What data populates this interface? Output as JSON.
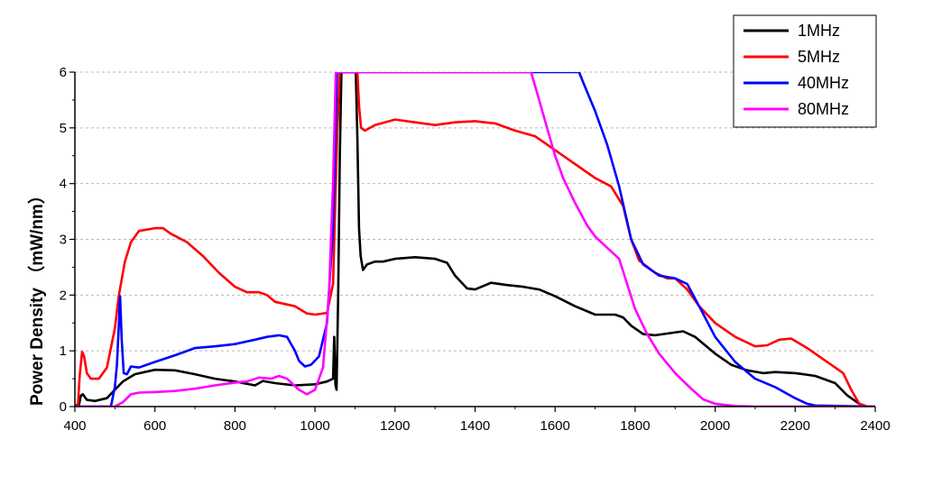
{
  "chart_data": {
    "type": "line",
    "title": "",
    "xlabel": "",
    "ylabel": "Power Density （mW/nm）",
    "xlim": [
      400,
      2400
    ],
    "ylim": [
      0,
      6
    ],
    "x_ticks": [
      "400",
      "600",
      "800",
      "1000",
      "1200",
      "1400",
      "1600",
      "1800",
      "2000",
      "2200",
      "2400"
    ],
    "y_ticks": [
      "0",
      "1",
      "2",
      "3",
      "4",
      "5",
      "6"
    ],
    "grid": "horizontal dashed",
    "legend_position": "top-right",
    "series": [
      {
        "name": "1MHz",
        "color": "#000000",
        "points": [
          [
            400,
            0.0
          ],
          [
            410,
            0.02
          ],
          [
            415,
            0.2
          ],
          [
            420,
            0.22
          ],
          [
            430,
            0.12
          ],
          [
            450,
            0.1
          ],
          [
            480,
            0.15
          ],
          [
            500,
            0.3
          ],
          [
            520,
            0.45
          ],
          [
            550,
            0.58
          ],
          [
            600,
            0.66
          ],
          [
            650,
            0.65
          ],
          [
            700,
            0.58
          ],
          [
            750,
            0.5
          ],
          [
            800,
            0.45
          ],
          [
            850,
            0.38
          ],
          [
            870,
            0.46
          ],
          [
            900,
            0.42
          ],
          [
            950,
            0.38
          ],
          [
            1000,
            0.4
          ],
          [
            1030,
            0.45
          ],
          [
            1045,
            0.5
          ],
          [
            1048,
            1.25
          ],
          [
            1051,
            0.4
          ],
          [
            1054,
            0.3
          ],
          [
            1058,
            2.0
          ],
          [
            1062,
            4.5
          ],
          [
            1066,
            6.0
          ],
          [
            1102,
            6.0
          ],
          [
            1106,
            4.8
          ],
          [
            1110,
            3.2
          ],
          [
            1114,
            2.7
          ],
          [
            1120,
            2.45
          ],
          [
            1130,
            2.55
          ],
          [
            1150,
            2.6
          ],
          [
            1170,
            2.6
          ],
          [
            1200,
            2.65
          ],
          [
            1250,
            2.68
          ],
          [
            1300,
            2.65
          ],
          [
            1330,
            2.58
          ],
          [
            1350,
            2.35
          ],
          [
            1380,
            2.12
          ],
          [
            1400,
            2.1
          ],
          [
            1440,
            2.22
          ],
          [
            1480,
            2.18
          ],
          [
            1520,
            2.15
          ],
          [
            1560,
            2.1
          ],
          [
            1600,
            1.98
          ],
          [
            1650,
            1.8
          ],
          [
            1700,
            1.65
          ],
          [
            1750,
            1.65
          ],
          [
            1770,
            1.6
          ],
          [
            1790,
            1.45
          ],
          [
            1820,
            1.3
          ],
          [
            1850,
            1.28
          ],
          [
            1890,
            1.32
          ],
          [
            1920,
            1.35
          ],
          [
            1950,
            1.25
          ],
          [
            2000,
            0.95
          ],
          [
            2040,
            0.75
          ],
          [
            2080,
            0.65
          ],
          [
            2120,
            0.6
          ],
          [
            2150,
            0.62
          ],
          [
            2200,
            0.6
          ],
          [
            2250,
            0.55
          ],
          [
            2300,
            0.42
          ],
          [
            2330,
            0.2
          ],
          [
            2360,
            0.05
          ],
          [
            2380,
            0.0
          ],
          [
            2400,
            0.0
          ]
        ]
      },
      {
        "name": "5MHz",
        "color": "#ff0000",
        "points": [
          [
            400,
            0.0
          ],
          [
            408,
            0.05
          ],
          [
            412,
            0.55
          ],
          [
            418,
            0.98
          ],
          [
            423,
            0.9
          ],
          [
            430,
            0.6
          ],
          [
            440,
            0.5
          ],
          [
            460,
            0.5
          ],
          [
            480,
            0.7
          ],
          [
            500,
            1.4
          ],
          [
            510,
            2.0
          ],
          [
            525,
            2.6
          ],
          [
            540,
            2.95
          ],
          [
            560,
            3.15
          ],
          [
            600,
            3.2
          ],
          [
            620,
            3.2
          ],
          [
            640,
            3.1
          ],
          [
            680,
            2.95
          ],
          [
            720,
            2.7
          ],
          [
            760,
            2.4
          ],
          [
            800,
            2.15
          ],
          [
            830,
            2.05
          ],
          [
            860,
            2.05
          ],
          [
            880,
            2.0
          ],
          [
            900,
            1.88
          ],
          [
            950,
            1.8
          ],
          [
            980,
            1.67
          ],
          [
            1000,
            1.65
          ],
          [
            1030,
            1.68
          ],
          [
            1045,
            2.2
          ],
          [
            1055,
            4.8
          ],
          [
            1062,
            6.0
          ],
          [
            1106,
            6.0
          ],
          [
            1110,
            5.4
          ],
          [
            1115,
            5.0
          ],
          [
            1125,
            4.95
          ],
          [
            1150,
            5.05
          ],
          [
            1200,
            5.15
          ],
          [
            1250,
            5.1
          ],
          [
            1300,
            5.05
          ],
          [
            1350,
            5.1
          ],
          [
            1400,
            5.12
          ],
          [
            1450,
            5.08
          ],
          [
            1500,
            4.95
          ],
          [
            1550,
            4.85
          ],
          [
            1600,
            4.6
          ],
          [
            1650,
            4.35
          ],
          [
            1700,
            4.1
          ],
          [
            1740,
            3.95
          ],
          [
            1770,
            3.6
          ],
          [
            1790,
            3.0
          ],
          [
            1810,
            2.62
          ],
          [
            1850,
            2.4
          ],
          [
            1880,
            2.3
          ],
          [
            1900,
            2.3
          ],
          [
            1930,
            2.1
          ],
          [
            1960,
            1.8
          ],
          [
            2000,
            1.5
          ],
          [
            2050,
            1.25
          ],
          [
            2100,
            1.08
          ],
          [
            2130,
            1.1
          ],
          [
            2160,
            1.2
          ],
          [
            2190,
            1.22
          ],
          [
            2230,
            1.05
          ],
          [
            2270,
            0.85
          ],
          [
            2300,
            0.7
          ],
          [
            2320,
            0.6
          ],
          [
            2340,
            0.3
          ],
          [
            2360,
            0.05
          ],
          [
            2380,
            0.0
          ],
          [
            2400,
            0.0
          ]
        ]
      },
      {
        "name": "40MHz",
        "color": "#0000ff",
        "points": [
          [
            400,
            0.0
          ],
          [
            490,
            0.0
          ],
          [
            500,
            0.35
          ],
          [
            505,
            0.75
          ],
          [
            510,
            1.5
          ],
          [
            513,
            1.98
          ],
          [
            517,
            1.2
          ],
          [
            522,
            0.6
          ],
          [
            530,
            0.58
          ],
          [
            540,
            0.72
          ],
          [
            560,
            0.7
          ],
          [
            600,
            0.8
          ],
          [
            650,
            0.92
          ],
          [
            700,
            1.05
          ],
          [
            750,
            1.08
          ],
          [
            800,
            1.12
          ],
          [
            850,
            1.2
          ],
          [
            880,
            1.25
          ],
          [
            910,
            1.28
          ],
          [
            930,
            1.25
          ],
          [
            950,
            1.0
          ],
          [
            960,
            0.82
          ],
          [
            975,
            0.72
          ],
          [
            990,
            0.75
          ],
          [
            1010,
            0.9
          ],
          [
            1030,
            1.5
          ],
          [
            1045,
            3.2
          ],
          [
            1055,
            6.0
          ],
          [
            1660,
            6.0
          ],
          [
            1670,
            5.82
          ],
          [
            1700,
            5.3
          ],
          [
            1730,
            4.7
          ],
          [
            1760,
            3.95
          ],
          [
            1790,
            3.0
          ],
          [
            1820,
            2.55
          ],
          [
            1860,
            2.35
          ],
          [
            1900,
            2.3
          ],
          [
            1930,
            2.2
          ],
          [
            1960,
            1.8
          ],
          [
            2000,
            1.25
          ],
          [
            2050,
            0.8
          ],
          [
            2100,
            0.5
          ],
          [
            2150,
            0.35
          ],
          [
            2200,
            0.15
          ],
          [
            2230,
            0.05
          ],
          [
            2250,
            0.02
          ],
          [
            2400,
            0.0
          ]
        ]
      },
      {
        "name": "80MHz",
        "color": "#ff00ff",
        "points": [
          [
            400,
            0.0
          ],
          [
            500,
            0.0
          ],
          [
            520,
            0.08
          ],
          [
            540,
            0.22
          ],
          [
            560,
            0.25
          ],
          [
            600,
            0.26
          ],
          [
            650,
            0.28
          ],
          [
            700,
            0.32
          ],
          [
            750,
            0.38
          ],
          [
            800,
            0.43
          ],
          [
            830,
            0.45
          ],
          [
            860,
            0.52
          ],
          [
            890,
            0.5
          ],
          [
            910,
            0.55
          ],
          [
            930,
            0.5
          ],
          [
            960,
            0.3
          ],
          [
            980,
            0.22
          ],
          [
            1000,
            0.3
          ],
          [
            1020,
            0.7
          ],
          [
            1035,
            2.0
          ],
          [
            1045,
            4.0
          ],
          [
            1052,
            6.0
          ],
          [
            1540,
            6.0
          ],
          [
            1560,
            5.5
          ],
          [
            1580,
            5.0
          ],
          [
            1600,
            4.5
          ],
          [
            1620,
            4.1
          ],
          [
            1650,
            3.65
          ],
          [
            1680,
            3.25
          ],
          [
            1700,
            3.05
          ],
          [
            1730,
            2.85
          ],
          [
            1760,
            2.65
          ],
          [
            1780,
            2.2
          ],
          [
            1800,
            1.75
          ],
          [
            1830,
            1.3
          ],
          [
            1860,
            0.95
          ],
          [
            1900,
            0.6
          ],
          [
            1940,
            0.32
          ],
          [
            1970,
            0.13
          ],
          [
            2000,
            0.05
          ],
          [
            2050,
            0.01
          ],
          [
            2100,
            0.0
          ],
          [
            2400,
            0.0
          ]
        ]
      }
    ]
  }
}
